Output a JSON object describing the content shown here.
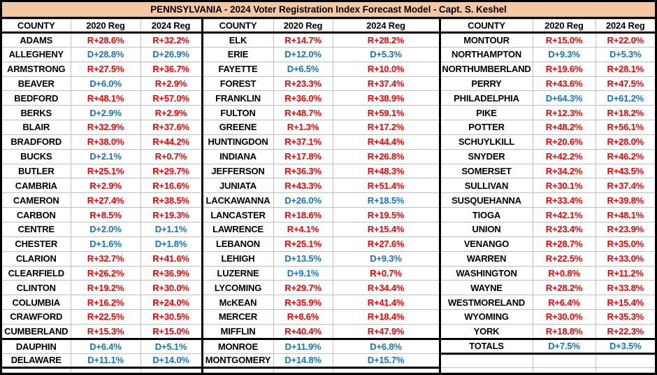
{
  "colors": {
    "red": "#FE0000",
    "blue": "#1474C4",
    "title_bg": "#F6C7A3",
    "grid_line": "#BFBFBF",
    "border": "#000000"
  },
  "chart_data": {
    "type": "table",
    "title": "PENNSYLVANIA - 2024 Voter Registration Index Forecast Model - Capt. S. Keshel",
    "columns": [
      "COUNTY",
      "2020 Reg",
      "2024 Reg"
    ],
    "column_groups": 3,
    "groups": [
      {
        "rows": [
          [
            "ADAMS",
            "R+28.6%",
            "R+32.2%"
          ],
          [
            "ALLEGHENY",
            "D+28.8%",
            "D+26.9%"
          ],
          [
            "ARMSTRONG",
            "R+27.5%",
            "R+36.7%"
          ],
          [
            "BEAVER",
            "D+6.0%",
            "R+2.9%"
          ],
          [
            "BEDFORD",
            "R+48.1%",
            "R+57.0%"
          ],
          [
            "BERKS",
            "D+2.9%",
            "R+2.9%"
          ],
          [
            "BLAIR",
            "R+32.9%",
            "R+37.6%"
          ],
          [
            "BRADFORD",
            "R+38.0%",
            "R+44.2%"
          ],
          [
            "BUCKS",
            "D+2.1%",
            "R+0.7%"
          ],
          [
            "BUTLER",
            "R+25.1%",
            "R+29.7%"
          ],
          [
            "CAMBRIA",
            "R+2.9%",
            "R+16.6%"
          ],
          [
            "CAMERON",
            "R+27.4%",
            "R+38.5%"
          ],
          [
            "CARBON",
            "R+8.5%",
            "R+19.3%"
          ],
          [
            "CENTRE",
            "D+2.0%",
            "D+1.1%"
          ],
          [
            "CHESTER",
            "D+1.6%",
            "D+1.8%"
          ],
          [
            "CLARION",
            "R+32.7%",
            "R+41.6%"
          ],
          [
            "CLEARFIELD",
            "R+26.2%",
            "R+36.9%"
          ],
          [
            "CLINTON",
            "R+19.2%",
            "R+30.0%"
          ],
          [
            "COLUMBIA",
            "R+16.2%",
            "R+24.0%"
          ],
          [
            "CRAWFORD",
            "R+22.5%",
            "R+30.5%"
          ],
          [
            "CUMBERLAND",
            "R+15.3%",
            "R+15.0%"
          ],
          [
            "DAUPHIN",
            "D+6.4%",
            "D+5.1%"
          ],
          [
            "DELAWARE",
            "D+11.1%",
            "D+14.0%"
          ]
        ]
      },
      {
        "rows": [
          [
            "ELK",
            "R+14.7%",
            "R+28.2%"
          ],
          [
            "ERIE",
            "D+12.0%",
            "D+5.3%"
          ],
          [
            "FAYETTE",
            "D+6.5%",
            "R+10.0%"
          ],
          [
            "FOREST",
            "R+23.3%",
            "R+37.4%"
          ],
          [
            "FRANKLIN",
            "R+36.0%",
            "R+38.9%"
          ],
          [
            "FULTON",
            "R+48.7%",
            "R+59.1%"
          ],
          [
            "GREENE",
            "R+1.3%",
            "R+17.2%"
          ],
          [
            "HUNTINGDON",
            "R+37.1%",
            "R+44.4%"
          ],
          [
            "INDIANA",
            "R+17.8%",
            "R+26.8%"
          ],
          [
            "JEFFERSON",
            "R+36.3%",
            "R+48.3%"
          ],
          [
            "JUNIATA",
            "R+43.3%",
            "R+51.4%"
          ],
          [
            "LACKAWANNA",
            "D+26.0%",
            "R+18.5%"
          ],
          [
            "LANCASTER",
            "R+18.6%",
            "R+19.5%"
          ],
          [
            "LAWRENCE",
            "R+4.1%",
            "R+15.4%"
          ],
          [
            "LEBANON",
            "R+25.1%",
            "R+27.6%"
          ],
          [
            "LEHIGH",
            "D+13.5%",
            "D+9.3%"
          ],
          [
            "LUZERNE",
            "D+9.1%",
            "R+0.7%"
          ],
          [
            "LYCOMING",
            "R+29.7%",
            "R+34.4%"
          ],
          [
            "McKEAN",
            "R+35.9%",
            "R+41.4%"
          ],
          [
            "MERCER",
            "R+8.6%",
            "R+18.4%"
          ],
          [
            "MIFFLIN",
            "R+40.4%",
            "R+47.9%"
          ],
          [
            "MONROE",
            "D+11.9%",
            "D+6.8%"
          ],
          [
            "MONTGOMERY",
            "D+14.8%",
            "D+15.7%"
          ]
        ]
      },
      {
        "rows": [
          [
            "MONTOUR",
            "R+15.0%",
            "R+22.0%"
          ],
          [
            "NORTHAMPTON",
            "D+9.3%",
            "D+5.3%"
          ],
          [
            "NORTHUMBERLAND",
            "R+19.6%",
            "R+28.1%"
          ],
          [
            "PERRY",
            "R+43.6%",
            "R+47.5%"
          ],
          [
            "PHILADELPHIA",
            "D+64.3%",
            "D+61.2%"
          ],
          [
            "PIKE",
            "R+12.3%",
            "R+18.2%"
          ],
          [
            "POTTER",
            "R+48.2%",
            "R+56.1%"
          ],
          [
            "SCHUYLKILL",
            "R+20.6%",
            "R+28.0%"
          ],
          [
            "SNYDER",
            "R+42.2%",
            "R+46.2%"
          ],
          [
            "SOMERSET",
            "R+34.2%",
            "R+43.5%"
          ],
          [
            "SULLIVAN",
            "R+30.1%",
            "R+37.4%"
          ],
          [
            "SUSQUEHANNA",
            "R+33.4%",
            "R+39.8%"
          ],
          [
            "TIOGA",
            "R+42.1%",
            "R+48.1%"
          ],
          [
            "UNION",
            "R+23.4%",
            "R+23.9%"
          ],
          [
            "VENANGO",
            "R+28.7%",
            "R+35.0%"
          ],
          [
            "WARREN",
            "R+22.5%",
            "R+33.0%"
          ],
          [
            "WASHINGTON",
            "R+0.8%",
            "R+11.2%"
          ],
          [
            "WAYNE",
            "R+28.2%",
            "R+33.8%"
          ],
          [
            "WESTMORELAND",
            "R+6.4%",
            "R+15.4%"
          ],
          [
            "WYOMING",
            "R+30.0%",
            "R+35.3%"
          ],
          [
            "YORK",
            "R+18.8%",
            "R+22.3%"
          ]
        ]
      }
    ],
    "totals": [
      "TOTALS",
      "D+7.5%",
      "D+3.5%"
    ],
    "color_rule": "values starting with R render red, values starting with D render blue",
    "anomalies": [
      {
        "county": "LACKAWANNA",
        "column": "2024 Reg",
        "value": "R+18.5%",
        "rendered_color": "blue"
      }
    ]
  }
}
